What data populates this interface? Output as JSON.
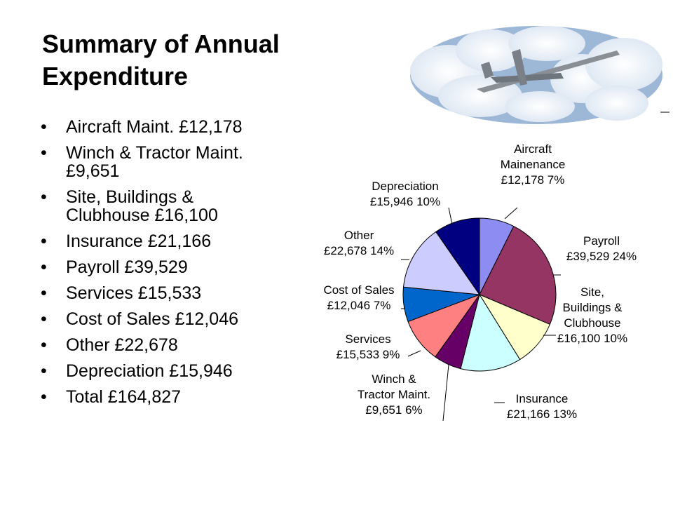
{
  "slide": {
    "title_lines": [
      "Summary of Annual",
      "Expenditure"
    ],
    "bullets": [
      [
        "Aircraft Maint. £12,178"
      ],
      [
        "Winch & Tractor Maint.",
        "£9,651"
      ],
      [
        "Site, Buildings &",
        "Clubhouse £16,100"
      ],
      [
        "Insurance £21,166"
      ],
      [
        "Payroll £39,529"
      ],
      [
        "Services £15,533"
      ],
      [
        "Cost of Sales £12,046"
      ],
      [
        "Other £22,678"
      ],
      [
        "Depreciation £15,946"
      ],
      [
        "Total £164,827"
      ]
    ],
    "banner_icon": "glider-clouds-icon"
  },
  "chart_data": {
    "type": "pie",
    "slices": [
      {
        "label_lines": [
          "Aircraft",
          "Mainenance",
          "£12,178 7%"
        ],
        "value": 12178,
        "color": "#8C8CF2"
      },
      {
        "label_lines": [
          "Payroll",
          "£39,529 24%"
        ],
        "value": 39529,
        "color": "#953563"
      },
      {
        "label_lines": [
          "Site,",
          "Buildings &",
          "Clubhouse",
          "£16,100 10%"
        ],
        "value": 16100,
        "color": "#FFFFCC"
      },
      {
        "label_lines": [
          "Insurance",
          "£21,166 13%"
        ],
        "value": 21166,
        "color": "#CCFFFF"
      },
      {
        "label_lines": [
          "Winch &",
          "Tractor Maint.",
          "£9,651 6%"
        ],
        "value": 9651,
        "color": "#660066"
      },
      {
        "label_lines": [
          "Services",
          "£15,533 9%"
        ],
        "value": 15533,
        "color": "#FF8080"
      },
      {
        "label_lines": [
          "Cost of Sales",
          "£12,046 7%"
        ],
        "value": 12046,
        "color": "#0066CC"
      },
      {
        "label_lines": [
          "Other",
          "£22,678 14%"
        ],
        "value": 22678,
        "color": "#CCCCFF"
      },
      {
        "label_lines": [
          "Depreciation",
          "£15,946 10%"
        ],
        "value": 15946,
        "color": "#000080"
      }
    ]
  }
}
